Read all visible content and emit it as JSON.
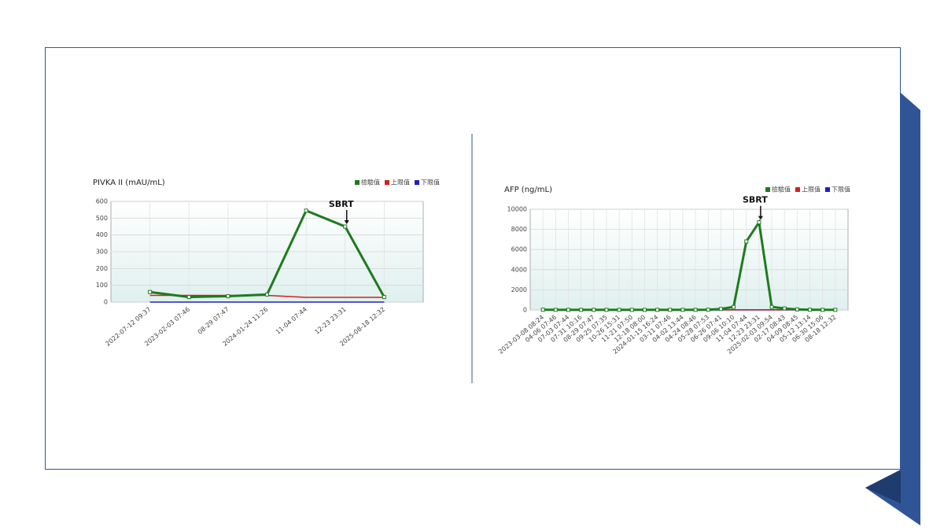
{
  "chart_data": [
    {
      "type": "line",
      "title": "PIVKA II (mAU/mL)",
      "annotation": "SBRT",
      "categories": [
        "2022-07-12 09:37",
        "2023-02-03 07:46",
        "08-29 07:47",
        "2024-01-24 11:26",
        "11-04 07:44",
        "12-23 23:31",
        "2025-08-18 12:32"
      ],
      "series": [
        {
          "name": "檢驗值",
          "color": "#1e7b1e",
          "values": [
            60,
            30,
            35,
            45,
            545,
            450,
            30
          ]
        },
        {
          "name": "上限值",
          "color": "#d42020",
          "values": [
            40,
            40,
            40,
            40,
            28,
            28,
            28
          ]
        },
        {
          "name": "下限值",
          "color": "#2020c0",
          "values": [
            0,
            0,
            0,
            0,
            0,
            0,
            0
          ]
        }
      ],
      "ylim": [
        0,
        600
      ],
      "yticks": [
        0,
        100,
        200,
        300,
        400,
        500,
        600
      ],
      "grid": true
    },
    {
      "type": "line",
      "title": "AFP (ng/mL)",
      "annotation": "SBRT",
      "categories": [
        "2023-03-08 08:24",
        "04-06 07:46",
        "07-03 07:44",
        "07-31 10:16",
        "08-29 07:47",
        "09-25 07:35",
        "10-26 15:31",
        "11-21 07:50",
        "12-18 08:00",
        "2024-01-15 16:24",
        "03-11 07:46",
        "04-02 13:44",
        "04-24 08:46",
        "05-28 07:53",
        "06-26 07:41",
        "09-06 10:10",
        "11-04 07:44",
        "12-23 23:31",
        "2025-02-03 09:54",
        "02-17 08:43",
        "04-09 08:45",
        "05-12 13:14",
        "06-30 15:06",
        "08-18 12:32"
      ],
      "series": [
        {
          "name": "檢驗值",
          "color": "#1e7b1e",
          "values": [
            20,
            10,
            10,
            10,
            10,
            10,
            10,
            10,
            10,
            10,
            10,
            10,
            10,
            20,
            100,
            300,
            6800,
            8700,
            300,
            150,
            50,
            20,
            10,
            10
          ]
        },
        {
          "name": "上限值",
          "color": "#d42020",
          "values": [
            20,
            20,
            20,
            20,
            20,
            20,
            20,
            20,
            20,
            20,
            20,
            20,
            20,
            20,
            20,
            20,
            20,
            20,
            20,
            20,
            20,
            20,
            20,
            20
          ]
        },
        {
          "name": "下限值",
          "color": "#2020c0",
          "values": [
            0,
            0,
            0,
            0,
            0,
            0,
            0,
            0,
            0,
            0,
            0,
            0,
            0,
            0,
            0,
            0,
            0,
            0,
            0,
            0,
            0,
            0,
            0,
            0
          ]
        }
      ],
      "ylim": [
        0,
        10000
      ],
      "yticks": [
        0,
        2000,
        4000,
        6000,
        8000,
        10000
      ],
      "grid": true
    }
  ]
}
